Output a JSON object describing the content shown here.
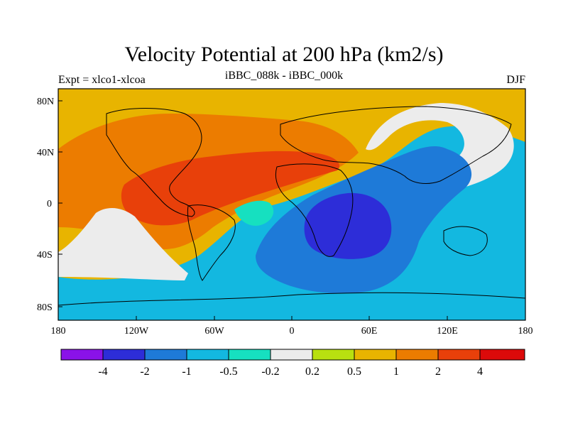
{
  "title": "Velocity Potential at 200 hPa (km2/s)",
  "subtitle_left": "Expt = xlco1-xlcoa",
  "subtitle_center": "iBBC_088k - iBBC_000k",
  "subtitle_right": "DJF",
  "lat_labels": [
    "80N",
    "40N",
    "0",
    "40S",
    "80S"
  ],
  "lon_labels": [
    "180",
    "120W",
    "60W",
    "0",
    "60E",
    "120E",
    "180"
  ],
  "colorbar": {
    "colors": [
      "#8a12e8",
      "#2d2dd8",
      "#1e7ad8",
      "#13b8e0",
      "#16e0c0",
      "#ececec",
      "#b8e010",
      "#e8b400",
      "#ec7c00",
      "#e8400a",
      "#dc0a0a"
    ],
    "labels": [
      "-4",
      "-2",
      "-1",
      "-0.5",
      "-0.2",
      "0.2",
      "0.5",
      "1",
      "2",
      "4"
    ]
  },
  "field_colors": {
    "strong_positive": "#e8400a",
    "positive": "#ec7c00",
    "weak_positive": "#e8b400",
    "near_zero_positive": "#b8e010",
    "neutral": "#ececec",
    "weak_negative": "#16e0c0",
    "negative": "#13b8e0",
    "stronger_negative": "#1e7ad8",
    "strong_negative": "#2d2dd8",
    "coast": "#000000"
  }
}
